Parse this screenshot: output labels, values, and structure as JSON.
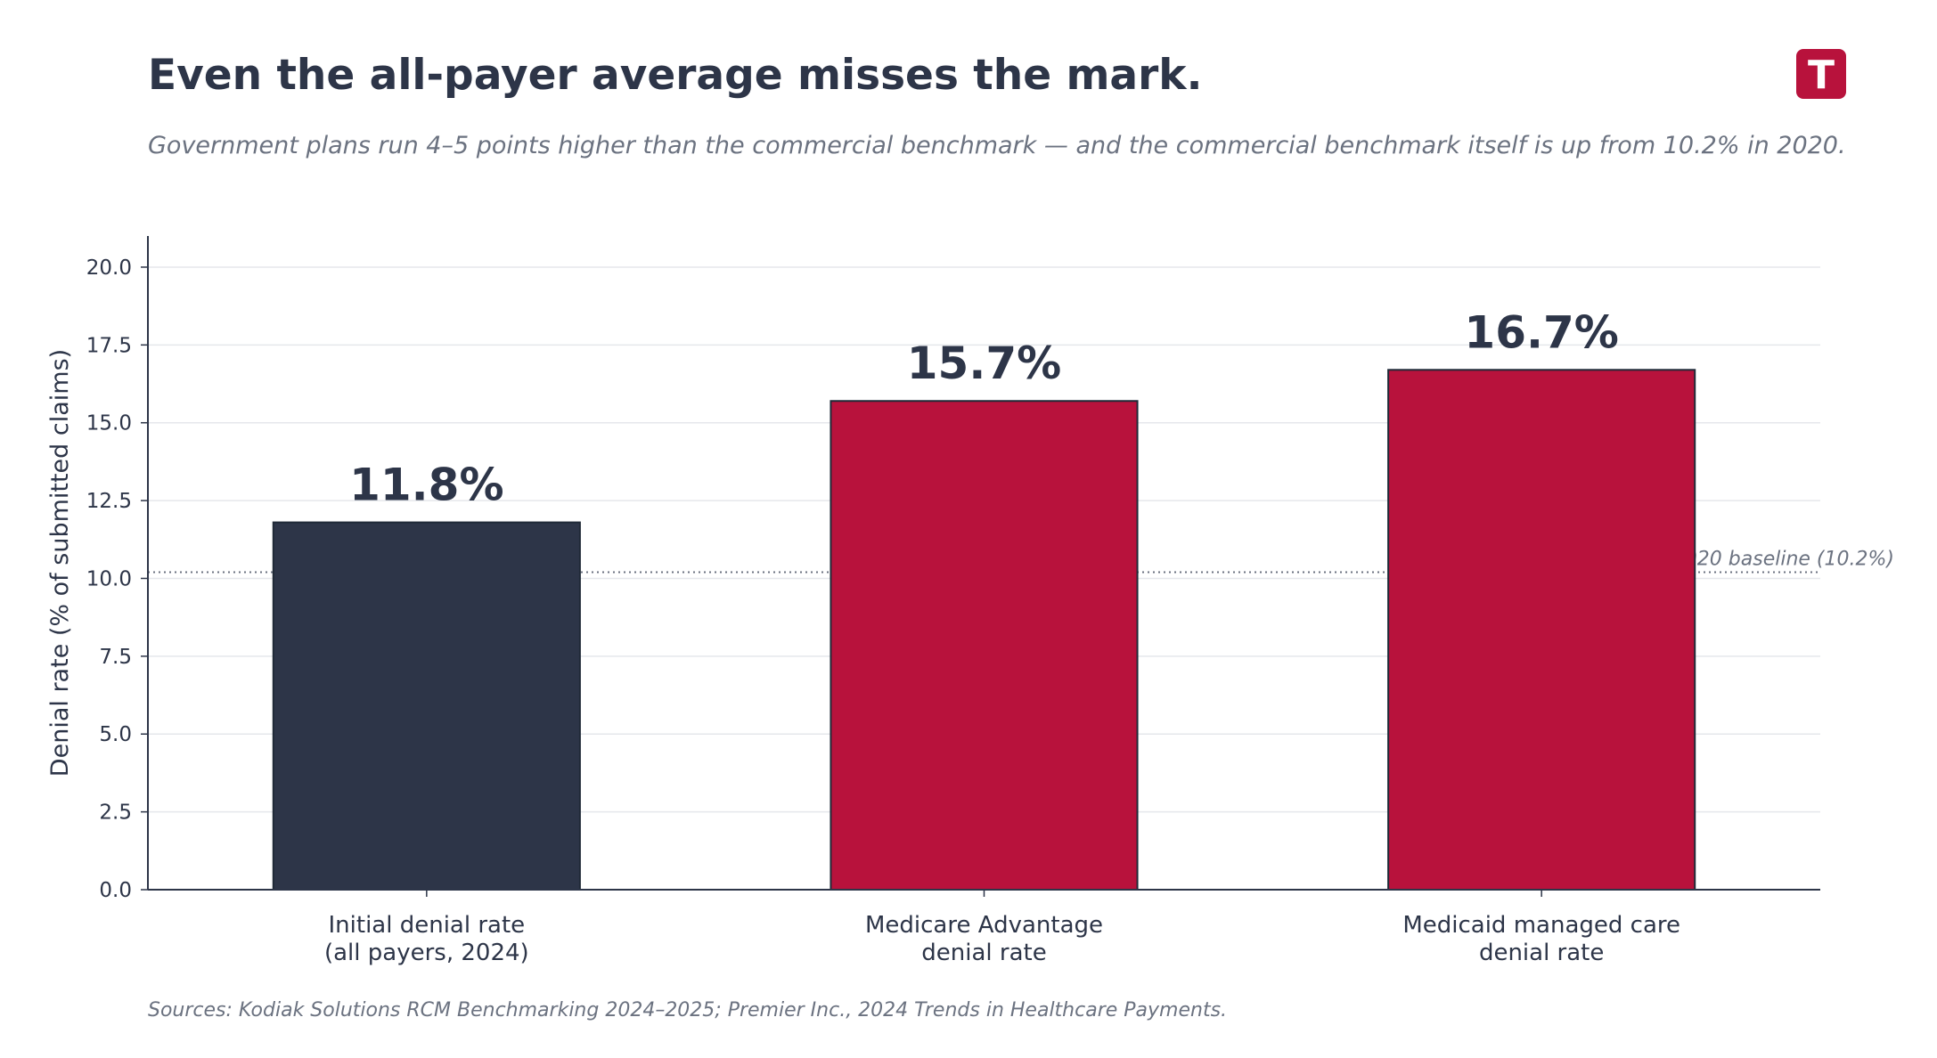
{
  "chart_data": {
    "type": "bar",
    "title": "Even the all-payer average misses the mark.",
    "subtitle": "Government plans run 4–5 points higher than the commercial benchmark — and the commercial benchmark itself is up from 10.2% in 2020.",
    "ylabel": "Denial rate (% of submitted claims)",
    "xlabel": "",
    "ylim": [
      0,
      21
    ],
    "yticks": [
      0.0,
      2.5,
      5.0,
      7.5,
      10.0,
      12.5,
      15.0,
      17.5,
      20.0
    ],
    "grid": "horizontal",
    "categories": [
      [
        "Initial denial rate",
        "(all payers, 2024)"
      ],
      [
        "Medicare Advantage",
        "denial rate"
      ],
      [
        "Medicaid managed care",
        "denial rate"
      ]
    ],
    "values": [
      11.8,
      15.7,
      16.7
    ],
    "data_labels": [
      "11.8%",
      "15.7%",
      "16.7%"
    ],
    "bar_colors": [
      "#2d3548",
      "#b8123c",
      "#b8123c"
    ],
    "reference_line": {
      "value": 10.2,
      "label": "2020 baseline (10.2%)",
      "style": "dotted"
    },
    "source": "Sources: Kodiak Solutions RCM Benchmarking 2024–2025;  Premier Inc., 2024 Trends in Healthcare Payments."
  },
  "logo": {
    "letter": "T",
    "color": "#b8123c"
  },
  "colors": {
    "text_dark": "#2d3548",
    "text_muted": "#6b7280",
    "grid": "#e5e7eb",
    "axis": "#2d3548"
  }
}
